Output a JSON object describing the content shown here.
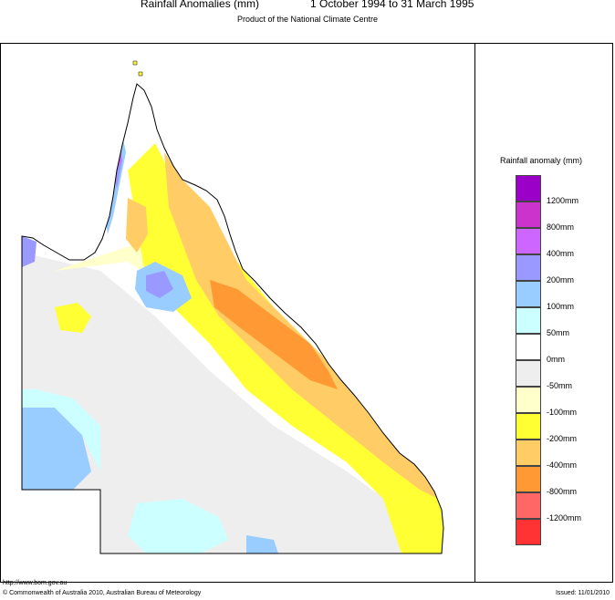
{
  "header": {
    "title": "Rainfall Anomalies (mm)",
    "period": "1 October 1994 to 31 March 1995",
    "subtitle": "Product of the National Climate Centre"
  },
  "legend": {
    "title": "Rainfall anomaly (mm)",
    "items": [
      {
        "label": "",
        "color": "#9a00c8"
      },
      {
        "label": "1200mm",
        "color": "#cc33cc"
      },
      {
        "label": "800mm",
        "color": "#cc66ff"
      },
      {
        "label": "400mm",
        "color": "#9999ff"
      },
      {
        "label": "200mm",
        "color": "#99ccff"
      },
      {
        "label": "100mm",
        "color": "#ccffff"
      },
      {
        "label": "50mm",
        "color": "#ffffff"
      },
      {
        "label": "0mm",
        "color": "#eeeeee"
      },
      {
        "label": "-50mm",
        "color": "#ffffcc"
      },
      {
        "label": "-100mm",
        "color": "#ffff33"
      },
      {
        "label": "-200mm",
        "color": "#ffcc66"
      },
      {
        "label": "-400mm",
        "color": "#ff9933"
      },
      {
        "label": "-800mm",
        "color": "#ff6666"
      },
      {
        "label": "-1200mm",
        "color": "#ff3333"
      }
    ]
  },
  "footer": {
    "url": "http://www.bom.gov.au",
    "copyright": "© Commonwealth of Australia 2010, Australian Bureau of Meteorology",
    "issued": "Issued: 11/01/2010"
  }
}
